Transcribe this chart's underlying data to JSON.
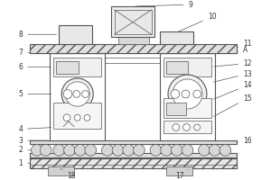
{
  "line_color": "#555555",
  "label_color": "#333333",
  "fig_width": 3.0,
  "fig_height": 2.0,
  "dpi": 100,
  "label_fs": 5.5,
  "lw_main": 0.8,
  "lw_thin": 0.5,
  "lw_hatch": 0.4
}
